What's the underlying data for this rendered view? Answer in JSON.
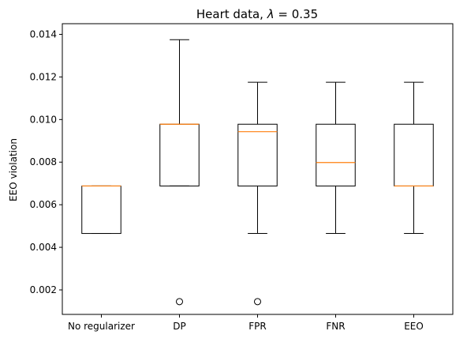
{
  "chart_data": {
    "type": "box",
    "title_prefix": "Heart data, ",
    "title_symbol": "λ",
    "title_suffix": " =  0.35",
    "xlabel": "",
    "ylabel": "EEO violation",
    "ylim": [
      0.00085,
      0.0145
    ],
    "yticks": [
      0.002,
      0.004,
      0.006,
      0.008,
      0.01,
      0.012,
      0.014
    ],
    "ytick_labels": [
      "0.002",
      "0.004",
      "0.006",
      "0.008",
      "0.010",
      "0.012",
      "0.014"
    ],
    "grid": false,
    "box_color": "#000000",
    "median_color": "#ff7f0e",
    "categories": [
      "No regularizer",
      "DP",
      "FPR",
      "FNR",
      "EEO"
    ],
    "boxes": [
      {
        "whisker_low": 0.00465,
        "q1": 0.00465,
        "median": 0.00688,
        "q3": 0.00688,
        "whisker_high": 0.00688,
        "outliers": []
      },
      {
        "whisker_low": 0.00688,
        "q1": 0.00688,
        "median": 0.00978,
        "q3": 0.00978,
        "whisker_high": 0.01375,
        "outliers": [
          0.00145
        ]
      },
      {
        "whisker_low": 0.00465,
        "q1": 0.00688,
        "median": 0.00943,
        "q3": 0.00978,
        "whisker_high": 0.01175,
        "outliers": [
          0.00145
        ]
      },
      {
        "whisker_low": 0.00465,
        "q1": 0.00688,
        "median": 0.00798,
        "q3": 0.00978,
        "whisker_high": 0.01175,
        "outliers": []
      },
      {
        "whisker_low": 0.00465,
        "q1": 0.00688,
        "median": 0.00688,
        "q3": 0.00978,
        "whisker_high": 0.01175,
        "outliers": []
      }
    ]
  }
}
